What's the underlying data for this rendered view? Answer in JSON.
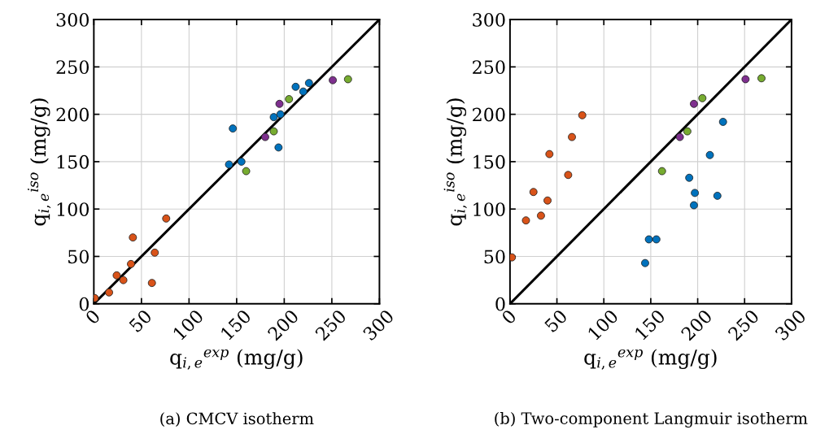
{
  "chart_data": [
    {
      "type": "scatter",
      "title": "(a) CMCV isotherm",
      "xlabel": "q$_{i,e}$$^{exp}$ (mg/g)",
      "ylabel": "q$_{i,e}$$^{iso}$ (mg/g)",
      "xlim": [
        0,
        300
      ],
      "ylim": [
        0,
        300
      ],
      "xticks": [
        0,
        50,
        100,
        150,
        200,
        250,
        300
      ],
      "yticks": [
        0,
        50,
        100,
        150,
        200,
        250,
        300
      ],
      "grid": true,
      "series": [
        {
          "type": "line",
          "color": "#000000",
          "x": [
            0,
            300
          ],
          "values": [
            0,
            300
          ]
        },
        {
          "color": "#d95319",
          "marker": "circle",
          "x": [
            1,
            16,
            24,
            31,
            39,
            41,
            61,
            64,
            76
          ],
          "values": [
            6,
            12,
            30,
            25,
            42,
            70,
            22,
            54,
            90
          ]
        },
        {
          "color": "#0072bd",
          "marker": "circle",
          "x": [
            142,
            155,
            146,
            189,
            196,
            194,
            212,
            220,
            226
          ],
          "values": [
            147,
            150,
            185,
            197,
            200,
            165,
            229,
            224,
            233
          ]
        },
        {
          "color": "#77ac30",
          "marker": "circle",
          "x": [
            160,
            189,
            205,
            267
          ],
          "values": [
            140,
            182,
            216,
            237
          ]
        },
        {
          "color": "#7e2f8e",
          "marker": "circle",
          "x": [
            180,
            195,
            251
          ],
          "values": [
            176,
            211,
            236
          ]
        }
      ]
    },
    {
      "type": "scatter",
      "title": "(b) Two-component Langmuir isotherm",
      "xlabel": "q$_{i,e}$$^{exp}$ (mg/g)",
      "ylabel": "q$_{i,e}$$^{iso}$ (mg/g)",
      "xlim": [
        0,
        300
      ],
      "ylim": [
        0,
        300
      ],
      "xticks": [
        0,
        50,
        100,
        150,
        200,
        250,
        300
      ],
      "yticks": [
        0,
        50,
        100,
        150,
        200,
        250,
        300
      ],
      "grid": true,
      "series": [
        {
          "type": "line",
          "color": "#000000",
          "x": [
            0,
            300
          ],
          "values": [
            0,
            300
          ]
        },
        {
          "color": "#d95319",
          "marker": "circle",
          "x": [
            2,
            17,
            25,
            33,
            40,
            42,
            62,
            66,
            77
          ],
          "values": [
            49,
            88,
            118,
            93,
            109,
            158,
            136,
            176,
            199
          ]
        },
        {
          "color": "#0072bd",
          "marker": "circle",
          "x": [
            144,
            148,
            156,
            191,
            197,
            196,
            221,
            213,
            227
          ],
          "values": [
            43,
            68,
            68,
            133,
            117,
            104,
            114,
            157,
            192
          ]
        },
        {
          "color": "#77ac30",
          "marker": "circle",
          "x": [
            162,
            189,
            205,
            268
          ],
          "values": [
            140,
            182,
            217,
            238
          ]
        },
        {
          "color": "#7e2f8e",
          "marker": "circle",
          "x": [
            181,
            196,
            251
          ],
          "values": [
            176,
            211,
            237
          ]
        }
      ]
    }
  ]
}
